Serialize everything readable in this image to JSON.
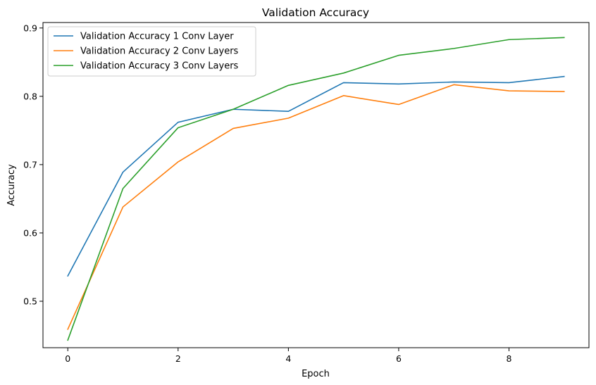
{
  "chart_data": {
    "type": "line",
    "title": "Validation Accuracy",
    "xlabel": "Epoch",
    "ylabel": "Accuracy",
    "xlim": [
      -0.45,
      9.45
    ],
    "ylim": [
      0.432,
      0.908
    ],
    "xticks": [
      0,
      2,
      4,
      6,
      8
    ],
    "yticks": [
      0.5,
      0.6,
      0.7,
      0.8,
      0.9
    ],
    "grid": false,
    "legend_position": "upper-left",
    "x": [
      0,
      1,
      2,
      3,
      4,
      5,
      6,
      7,
      8,
      9
    ],
    "series": [
      {
        "name": "Validation Accuracy 1 Conv Layer",
        "color": "#1f77b4",
        "values": [
          0.537,
          0.689,
          0.762,
          0.781,
          0.778,
          0.82,
          0.818,
          0.821,
          0.82,
          0.829
        ]
      },
      {
        "name": "Validation Accuracy 2 Conv Layers",
        "color": "#ff7f0e",
        "values": [
          0.459,
          0.638,
          0.704,
          0.753,
          0.768,
          0.801,
          0.788,
          0.817,
          0.808,
          0.807
        ]
      },
      {
        "name": "Validation Accuracy 3 Conv Layers",
        "color": "#2ca02c",
        "values": [
          0.443,
          0.665,
          0.754,
          0.781,
          0.816,
          0.834,
          0.86,
          0.87,
          0.883,
          0.886
        ]
      }
    ]
  }
}
